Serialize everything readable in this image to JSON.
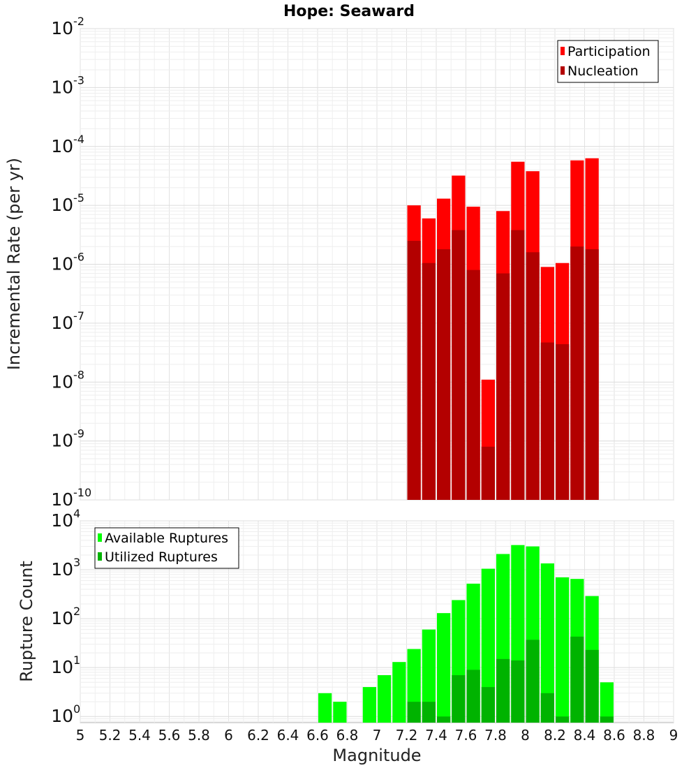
{
  "title": "Hope: Seaward",
  "chart_data": [
    {
      "type": "bar",
      "scale": "log",
      "ylabel": "Incremental Rate (per yr)",
      "ylim": [
        1e-10,
        0.01
      ],
      "xlim": [
        5,
        9
      ],
      "grid": true,
      "legend_position": "top-right",
      "y_ticks": [
        {
          "base": "10",
          "exp": "-10"
        },
        {
          "base": "10",
          "exp": "-9"
        },
        {
          "base": "10",
          "exp": "-8"
        },
        {
          "base": "10",
          "exp": "-7"
        },
        {
          "base": "10",
          "exp": "-6"
        },
        {
          "base": "10",
          "exp": "-5"
        },
        {
          "base": "10",
          "exp": "-4"
        },
        {
          "base": "10",
          "exp": "-3"
        },
        {
          "base": "10",
          "exp": "-2"
        }
      ],
      "x": [
        7.25,
        7.35,
        7.45,
        7.55,
        7.65,
        7.75,
        7.85,
        7.95,
        8.05,
        8.15,
        8.25,
        8.35,
        8.45
      ],
      "series": [
        {
          "name": "Participation",
          "color": "#ff0000",
          "values": [
            1e-05,
            6e-06,
            1.3e-05,
            3.2e-05,
            9.5e-06,
            1.1e-08,
            8e-06,
            5.5e-05,
            3.8e-05,
            9e-07,
            1.05e-06,
            5.8e-05,
            6.3e-05
          ]
        },
        {
          "name": "Nucleation",
          "color": "#b30000",
          "values": [
            2.5e-06,
            1.05e-06,
            1.8e-06,
            3.8e-06,
            8e-07,
            8e-10,
            7e-07,
            3.8e-06,
            1.6e-06,
            4.7e-08,
            4.4e-08,
            2e-06,
            1.8e-06
          ]
        }
      ]
    },
    {
      "type": "bar",
      "scale": "log",
      "ylabel": "Rupture Count",
      "xlabel": "Magnitude",
      "ylim": [
        0.75,
        10000
      ],
      "xlim": [
        5,
        9
      ],
      "grid": true,
      "legend_position": "top-left",
      "y_ticks": [
        {
          "base": "10",
          "exp": "0"
        },
        {
          "base": "10",
          "exp": "1"
        },
        {
          "base": "10",
          "exp": "2"
        },
        {
          "base": "10",
          "exp": "3"
        },
        {
          "base": "10",
          "exp": "4"
        }
      ],
      "x_ticks": [
        "5",
        "5.2",
        "5.4",
        "5.6",
        "5.8",
        "6",
        "6.2",
        "6.4",
        "6.6",
        "6.8",
        "7",
        "7.2",
        "7.4",
        "7.6",
        "7.8",
        "8",
        "8.2",
        "8.4",
        "8.6",
        "8.8",
        "9"
      ],
      "x": [
        6.65,
        6.75,
        6.95,
        7.05,
        7.15,
        7.25,
        7.35,
        7.45,
        7.55,
        7.65,
        7.75,
        7.85,
        7.95,
        8.05,
        8.15,
        8.25,
        8.35,
        8.45,
        8.55
      ],
      "series": [
        {
          "name": "Available Ruptures",
          "color": "#00ff00",
          "values": [
            3,
            2,
            4,
            7,
            13,
            24,
            60,
            130,
            240,
            520,
            1050,
            2100,
            3200,
            3000,
            1350,
            700,
            650,
            290,
            5
          ]
        },
        {
          "name": "Utilized Ruptures",
          "color": "#00b300",
          "values": [
            0,
            0,
            0,
            0,
            0,
            2,
            2,
            1,
            7,
            9,
            4,
            15,
            14,
            37,
            3,
            1,
            43,
            23,
            1
          ]
        }
      ]
    }
  ]
}
